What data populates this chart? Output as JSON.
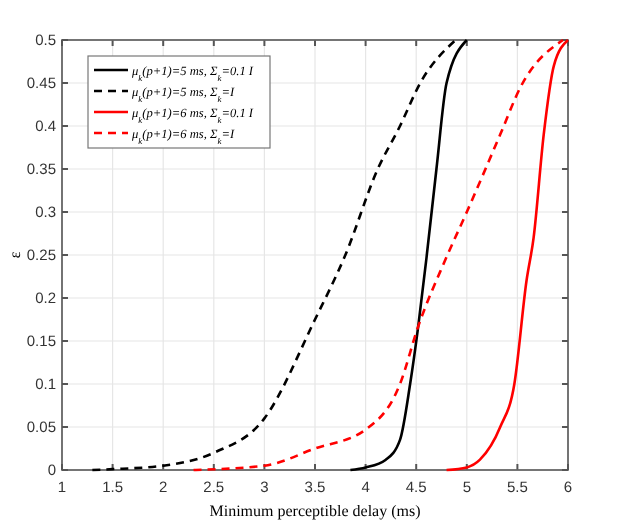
{
  "chart_data": {
    "type": "line",
    "xlabel": "Minimum perceptible delay (ms)",
    "ylabel": "ε",
    "xlim": [
      1,
      6
    ],
    "xticks": [
      1,
      1.5,
      2,
      2.5,
      3,
      3.5,
      4,
      4.5,
      5,
      5.5,
      6
    ],
    "ylim": [
      0,
      0.5
    ],
    "yticks": [
      0,
      0.05,
      0.1,
      0.15,
      0.2,
      0.25,
      0.3,
      0.35,
      0.4,
      0.45,
      0.5
    ],
    "grid": true,
    "legend": "top left",
    "series": [
      {
        "name": "μ$_{k}$(p+1)=5 ms, Σ$_{k}$=0.1 I",
        "color": "#000000",
        "line_style": "solid",
        "x": [
          3.85,
          4.0,
          4.2,
          4.34,
          4.44,
          4.52,
          4.6,
          4.7,
          4.8,
          5.0
        ],
        "values": [
          0,
          0.003,
          0.012,
          0.035,
          0.1,
          0.167,
          0.245,
          0.35,
          0.45,
          0.5
        ]
      },
      {
        "name": "μ$_{k}$(p+1)=5 ms, Σ$_{k}$=I",
        "color": "#000000",
        "line_style": "dashed",
        "x": [
          1.3,
          1.5,
          2,
          2.5,
          3,
          3.5,
          3.8,
          4.12,
          4.34,
          4.54,
          4.89
        ],
        "values": [
          0,
          0.001,
          0.005,
          0.02,
          0.06,
          0.175,
          0.25,
          0.35,
          0.4,
          0.45,
          0.5
        ]
      },
      {
        "name": "μ$_{k}$(p+1)=6 ms, Σ$_{k}$=0.1 I",
        "color": "#ff0000",
        "line_style": "solid",
        "x": [
          4.8,
          5.0,
          5.13,
          5.33,
          5.47,
          5.59,
          5.66,
          5.76,
          5.86,
          6.0
        ],
        "values": [
          0,
          0.003,
          0.012,
          0.05,
          0.1,
          0.22,
          0.27,
          0.39,
          0.47,
          0.5
        ]
      },
      {
        "name": "μ$_{k}$(p+1)=6 ms, Σ$_{k}$=I",
        "color": "#ff0000",
        "line_style": "dashed",
        "x": [
          2.3,
          3,
          3.5,
          4.0,
          4.34,
          4.52,
          4.79,
          5.0,
          5.33,
          5.53,
          5.95
        ],
        "values": [
          0,
          0.005,
          0.025,
          0.047,
          0.1,
          0.167,
          0.245,
          0.3,
          0.39,
          0.445,
          0.5
        ]
      }
    ]
  }
}
